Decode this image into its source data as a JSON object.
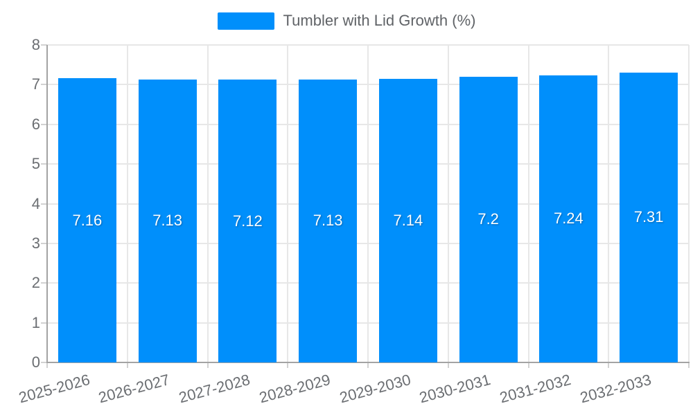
{
  "chart_data": {
    "type": "bar",
    "legend_label": "Tumbler with Lid Growth (%)",
    "series": [
      {
        "name": "Tumbler with Lid Growth (%)",
        "values": [
          7.16,
          7.13,
          7.12,
          7.13,
          7.14,
          7.2,
          7.24,
          7.31
        ]
      }
    ],
    "categories": [
      "2025-2026",
      "2026-2027",
      "2027-2028",
      "2028-2029",
      "2029-2030",
      "2030-2031",
      "2031-2032",
      "2032-2033"
    ],
    "values": [
      7.16,
      7.13,
      7.12,
      7.13,
      7.14,
      7.2,
      7.24,
      7.31
    ],
    "value_labels": [
      "7.16",
      "7.13",
      "7.12",
      "7.13",
      "7.14",
      "7.2",
      "7.24",
      "7.31"
    ],
    "title": "",
    "xlabel": "",
    "ylabel": "",
    "ylim": [
      0,
      8
    ],
    "ytick_step": 1,
    "ytick_labels": [
      "0",
      "1",
      "2",
      "3",
      "4",
      "5",
      "6",
      "7",
      "8"
    ],
    "legend_position": "top",
    "grid": "both",
    "x_label_rotation_deg": -15,
    "colors": {
      "bar": "#008FFB",
      "grid_line": "#e7e7e7",
      "axis_line": "#a3a3a3",
      "tick": "#d2d2d2",
      "axis_label_text": "#6b6e72",
      "legend_text": "#606367",
      "data_label_text": "#ffffff",
      "background": "#ffffff"
    }
  }
}
